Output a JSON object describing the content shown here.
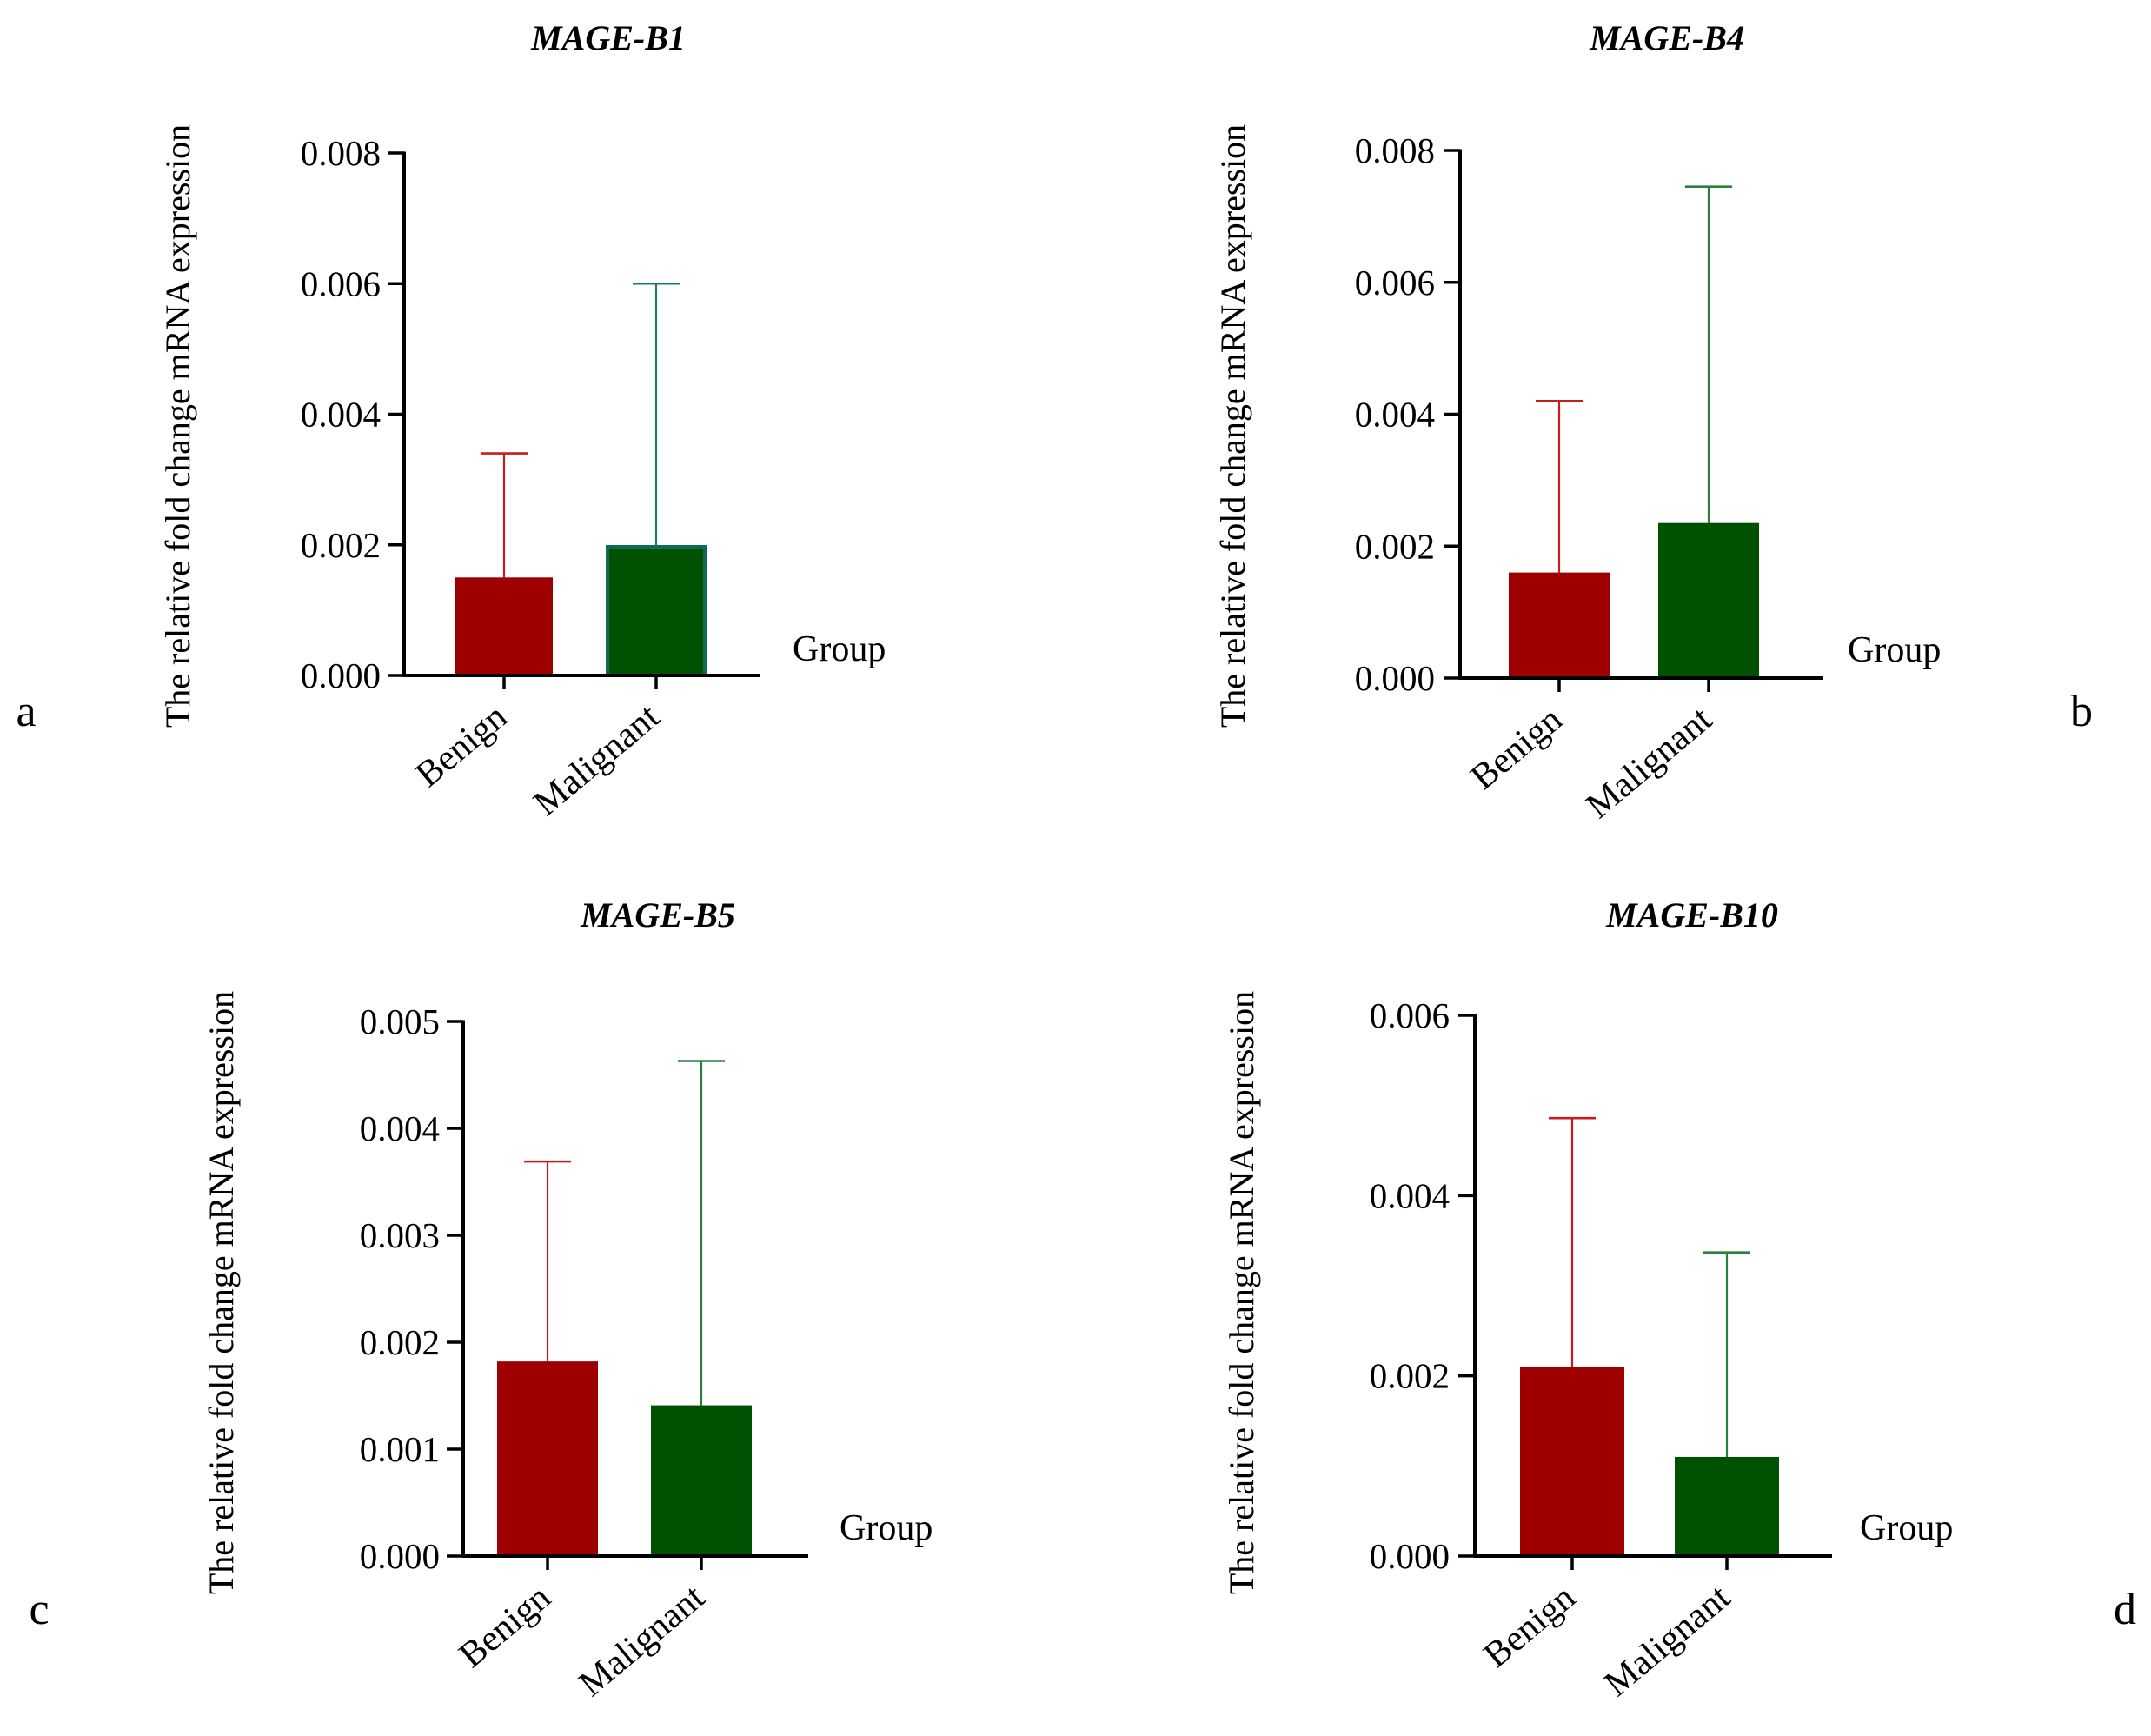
{
  "figure": {
    "panel_labels": [
      "a",
      "b",
      "c",
      "d"
    ]
  },
  "colors": {
    "benign": "#9e0000",
    "malignant": "#005200",
    "malignant_edge_a": "#0f6a5a",
    "benign_err": "#c41e1e",
    "malignant_err": "#2c7e3c",
    "malignant_err_a": "#1d7a6a",
    "axis": "#000000"
  },
  "chart_data": [
    {
      "type": "bar",
      "title": "MAGE-B1",
      "panel": "a",
      "xlabel": "Group",
      "ylabel": "The relative fold change mRNA expression",
      "categories": [
        "Benign",
        "Malignant"
      ],
      "values": [
        0.0015,
        0.00197
      ],
      "error_upper": [
        0.0034,
        0.006
      ],
      "ylim": [
        0,
        0.008
      ],
      "yticks": [
        "0.000",
        "0.002",
        "0.004",
        "0.006",
        "0.008"
      ],
      "ytick_values": [
        0,
        0.002,
        0.004,
        0.006,
        0.008
      ]
    },
    {
      "type": "bar",
      "title": "MAGE-B4",
      "panel": "b",
      "xlabel": "Group",
      "ylabel": "The relative fold change mRNA expression",
      "categories": [
        "Benign",
        "Malignant"
      ],
      "values": [
        0.0016,
        0.00235
      ],
      "error_upper": [
        0.0042,
        0.00745
      ],
      "ylim": [
        0,
        0.008
      ],
      "yticks": [
        "0.000",
        "0.002",
        "0.004",
        "0.006",
        "0.008"
      ],
      "ytick_values": [
        0,
        0.002,
        0.004,
        0.006,
        0.008
      ]
    },
    {
      "type": "bar",
      "title": "MAGE-B5",
      "panel": "c",
      "xlabel": "Group",
      "ylabel": "The relative fold change mRNA expression",
      "categories": [
        "Benign",
        "Malignant"
      ],
      "values": [
        0.00182,
        0.00141
      ],
      "error_upper": [
        0.00369,
        0.00463
      ],
      "ylim": [
        0,
        0.005
      ],
      "yticks": [
        "0.000",
        "0.001",
        "0.002",
        "0.003",
        "0.004",
        "0.005"
      ],
      "ytick_values": [
        0,
        0.001,
        0.002,
        0.003,
        0.004,
        0.005
      ]
    },
    {
      "type": "bar",
      "title": "MAGE-B10",
      "panel": "d",
      "xlabel": "Group",
      "ylabel": "The relative fold change mRNA expression",
      "categories": [
        "Benign",
        "Malignant"
      ],
      "values": [
        0.0021,
        0.0011
      ],
      "error_upper": [
        0.00486,
        0.00337
      ],
      "ylim": [
        0,
        0.006
      ],
      "yticks": [
        "0.000",
        "0.002",
        "0.004",
        "0.006"
      ],
      "ytick_values": [
        0,
        0.002,
        0.004,
        0.006
      ]
    }
  ]
}
